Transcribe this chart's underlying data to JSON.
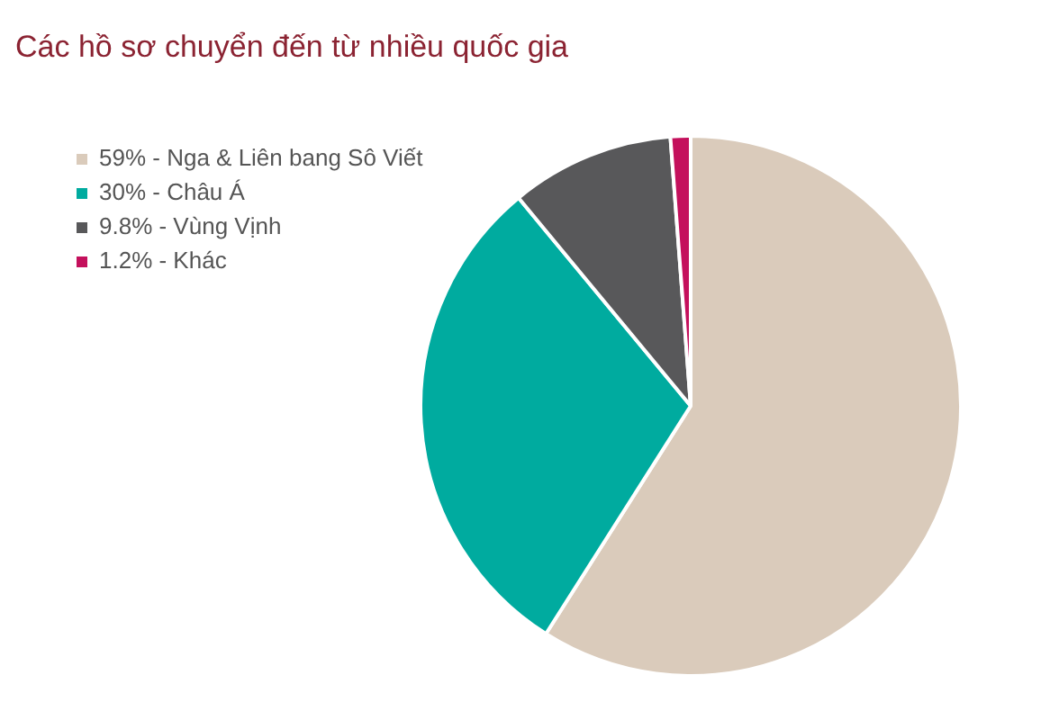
{
  "chart_data": {
    "type": "pie",
    "title": "Các hồ sơ chuyển đến từ nhiều quốc gia",
    "categories": [
      "59% - Nga & Liên bang Sô Viết",
      "30% - Châu Á",
      "9.8% - Vùng Vịnh",
      "1.2% - Khác"
    ],
    "values": [
      59,
      30,
      9.8,
      1.2
    ],
    "colors": [
      "#dacbbb",
      "#00ab9f",
      "#58585a",
      "#c4105c"
    ],
    "legend": "left"
  }
}
